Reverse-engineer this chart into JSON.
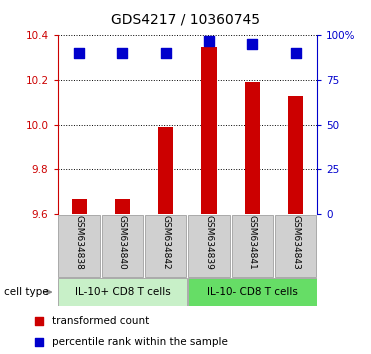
{
  "title": "GDS4217 / 10360745",
  "samples": [
    "GSM634838",
    "GSM634840",
    "GSM634842",
    "GSM634839",
    "GSM634841",
    "GSM634843"
  ],
  "transformed_counts": [
    9.67,
    9.67,
    9.99,
    10.35,
    10.19,
    10.13
  ],
  "percentile_ranks": [
    90,
    90,
    90,
    97,
    95,
    90
  ],
  "ylim_left": [
    9.6,
    10.4
  ],
  "ylim_right": [
    0,
    100
  ],
  "yticks_left": [
    9.6,
    9.8,
    10.0,
    10.2,
    10.4
  ],
  "yticks_right": [
    0,
    25,
    50,
    75,
    100
  ],
  "ytick_labels_right": [
    "0",
    "25",
    "50",
    "75",
    "100%"
  ],
  "bar_color": "#cc0000",
  "dot_color": "#0000cc",
  "group1_label": "IL-10+ CD8 T cells",
  "group2_label": "IL-10- CD8 T cells",
  "group1_indices": [
    0,
    1,
    2
  ],
  "group2_indices": [
    3,
    4,
    5
  ],
  "group1_color": "#c8f0c8",
  "group2_color": "#66dd66",
  "cell_type_label": "cell type",
  "legend1": "transformed count",
  "legend2": "percentile rank within the sample",
  "bar_width": 0.35,
  "dot_size": 45,
  "sample_box_color": "#d0d0d0"
}
